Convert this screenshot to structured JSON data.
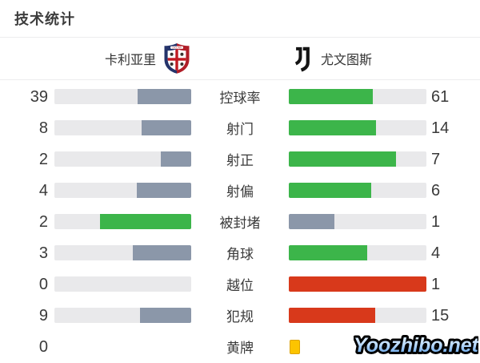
{
  "title": "技术统计",
  "teams": {
    "home": {
      "name": "卡利亚里"
    },
    "away": {
      "name": "尤文图斯"
    }
  },
  "colors": {
    "slate": "#8b97a9",
    "green": "#3cb54a",
    "red": "#d8391b",
    "track": "#e9e9eb",
    "yellow_card": "#fcc400",
    "crest_navy": "#25346b",
    "crest_red": "#b01e28",
    "juve_black": "#141414"
  },
  "chart_data": {
    "type": "bar",
    "title": "技术统计",
    "legend": [
      "卡利亚里",
      "尤文图斯"
    ],
    "categories": [
      "控球率",
      "射门",
      "射正",
      "射偏",
      "被封堵",
      "角球",
      "越位",
      "犯规",
      "黄牌"
    ],
    "series": [
      {
        "name": "卡利亚里",
        "values": [
          39,
          8,
          2,
          4,
          2,
          3,
          0,
          9,
          0
        ]
      },
      {
        "name": "尤文图斯",
        "values": [
          61,
          14,
          7,
          6,
          1,
          4,
          1,
          15,
          null
        ]
      }
    ]
  },
  "stats": [
    {
      "label": "控球率",
      "home": "39",
      "away": "61",
      "home_pct": 39,
      "away_pct": 61,
      "home_style": "slate",
      "away_style": "green",
      "home_track": true,
      "away_track": true,
      "away_card": false
    },
    {
      "label": "射门",
      "home": "8",
      "away": "14",
      "home_pct": 36.4,
      "away_pct": 63.6,
      "home_style": "slate",
      "away_style": "green",
      "home_track": true,
      "away_track": true,
      "away_card": false
    },
    {
      "label": "射正",
      "home": "2",
      "away": "7",
      "home_pct": 22.2,
      "away_pct": 77.8,
      "home_style": "slate",
      "away_style": "green",
      "home_track": true,
      "away_track": true,
      "away_card": false
    },
    {
      "label": "射偏",
      "home": "4",
      "away": "6",
      "home_pct": 40,
      "away_pct": 60,
      "home_style": "slate",
      "away_style": "green",
      "home_track": true,
      "away_track": true,
      "away_card": false
    },
    {
      "label": "被封堵",
      "home": "2",
      "away": "1",
      "home_pct": 66.7,
      "away_pct": 33.3,
      "home_style": "green",
      "away_style": "slate",
      "home_track": true,
      "away_track": true,
      "away_card": false
    },
    {
      "label": "角球",
      "home": "3",
      "away": "4",
      "home_pct": 42.9,
      "away_pct": 57.1,
      "home_style": "slate",
      "away_style": "green",
      "home_track": true,
      "away_track": true,
      "away_card": false
    },
    {
      "label": "越位",
      "home": "0",
      "away": "1",
      "home_pct": 0,
      "away_pct": 100,
      "home_style": "slate",
      "away_style": "red",
      "home_track": true,
      "away_track": true,
      "away_card": false
    },
    {
      "label": "犯规",
      "home": "9",
      "away": "15",
      "home_pct": 37.5,
      "away_pct": 62.5,
      "home_style": "slate",
      "away_style": "red",
      "home_track": true,
      "away_track": true,
      "away_card": false
    },
    {
      "label": "黄牌",
      "home": "0",
      "away": "",
      "home_pct": 0,
      "away_pct": 0,
      "home_style": "slate",
      "away_style": "green",
      "home_track": false,
      "away_track": false,
      "away_card": true
    }
  ],
  "watermark": {
    "text": "Yoozhibo.net"
  }
}
